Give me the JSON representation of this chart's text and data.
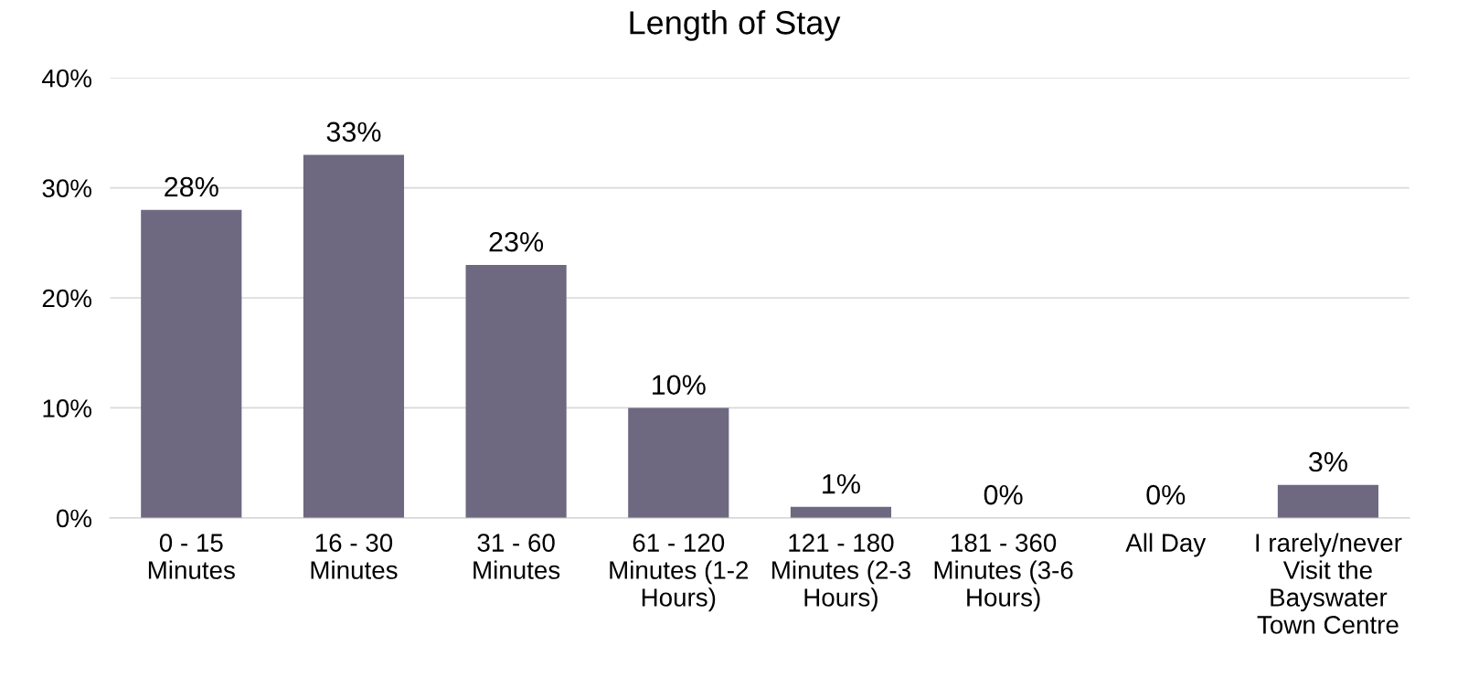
{
  "chart_data": {
    "type": "bar",
    "title": "Length of Stay",
    "categories": [
      "0 - 15\nMinutes",
      "16 - 30\nMinutes",
      "31 - 60\nMinutes",
      "61 - 120\nMinutes (1-2\nHours)",
      "121 - 180\nMinutes (2-3\nHours)",
      "181 - 360\nMinutes (3-6\nHours)",
      "All Day",
      "I rarely/never\nVisit the\nBayswater\nTown Centre"
    ],
    "values": [
      28,
      33,
      23,
      10,
      1,
      0,
      0,
      3
    ],
    "value_labels": [
      "28%",
      "33%",
      "23%",
      "10%",
      "1%",
      "0%",
      "0%",
      "3%"
    ],
    "color": "#6e6880",
    "ylim": [
      0,
      40
    ],
    "yticks": [
      {
        "value": 0,
        "label": "0%"
      },
      {
        "value": 10,
        "label": "10%"
      },
      {
        "value": 20,
        "label": "20%"
      },
      {
        "value": 30,
        "label": "30%"
      },
      {
        "value": 40,
        "label": "40%"
      }
    ],
    "grid": "y"
  }
}
